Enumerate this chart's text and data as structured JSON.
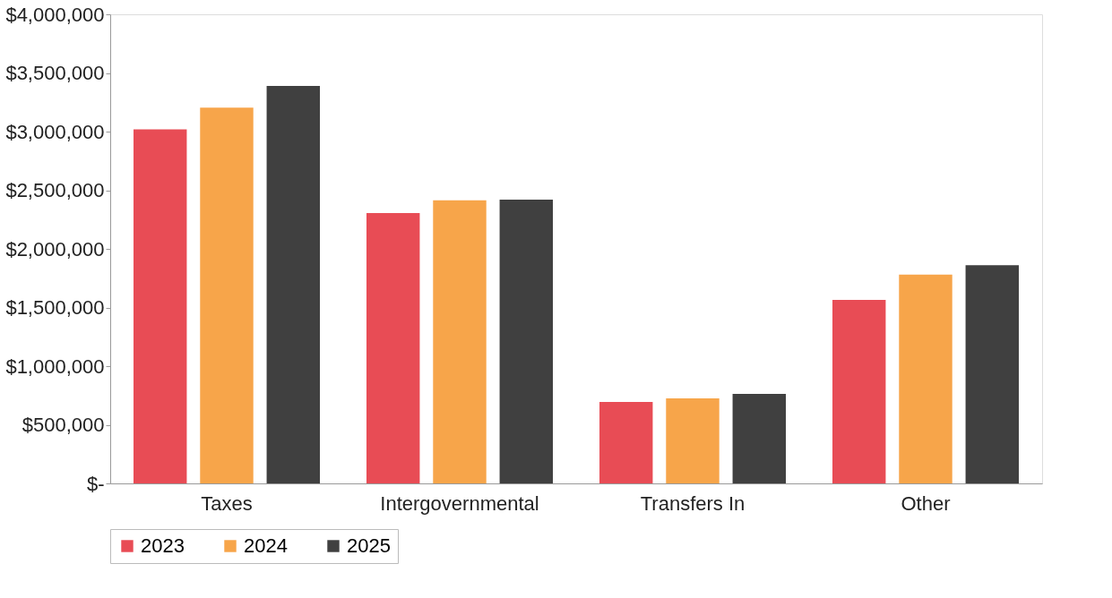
{
  "chart_data": {
    "type": "bar",
    "categories": [
      "Taxes",
      "Intergovernmental",
      "Transfers In",
      "Other"
    ],
    "series": [
      {
        "name": "2023",
        "color": "#e84c55",
        "values": [
          3020000,
          2305000,
          695000,
          1565000
        ]
      },
      {
        "name": "2024",
        "color": "#f7a54a",
        "values": [
          3205000,
          2415000,
          725000,
          1780000
        ]
      },
      {
        "name": "2025",
        "color": "#404040",
        "values": [
          3390000,
          2420000,
          763000,
          1860000
        ]
      }
    ],
    "ylim": [
      0,
      4000000
    ],
    "yticks": [
      {
        "value": 0,
        "label": "$-"
      },
      {
        "value": 500000,
        "label": "$500,000"
      },
      {
        "value": 1000000,
        "label": "$1,000,000"
      },
      {
        "value": 1500000,
        "label": "$1,500,000"
      },
      {
        "value": 2000000,
        "label": "$2,000,000"
      },
      {
        "value": 2500000,
        "label": "$2,500,000"
      },
      {
        "value": 3000000,
        "label": "$3,000,000"
      },
      {
        "value": 3500000,
        "label": "$3,500,000"
      },
      {
        "value": 4000000,
        "label": "$4,000,000"
      }
    ],
    "grid": false,
    "legend": "bottom"
  }
}
